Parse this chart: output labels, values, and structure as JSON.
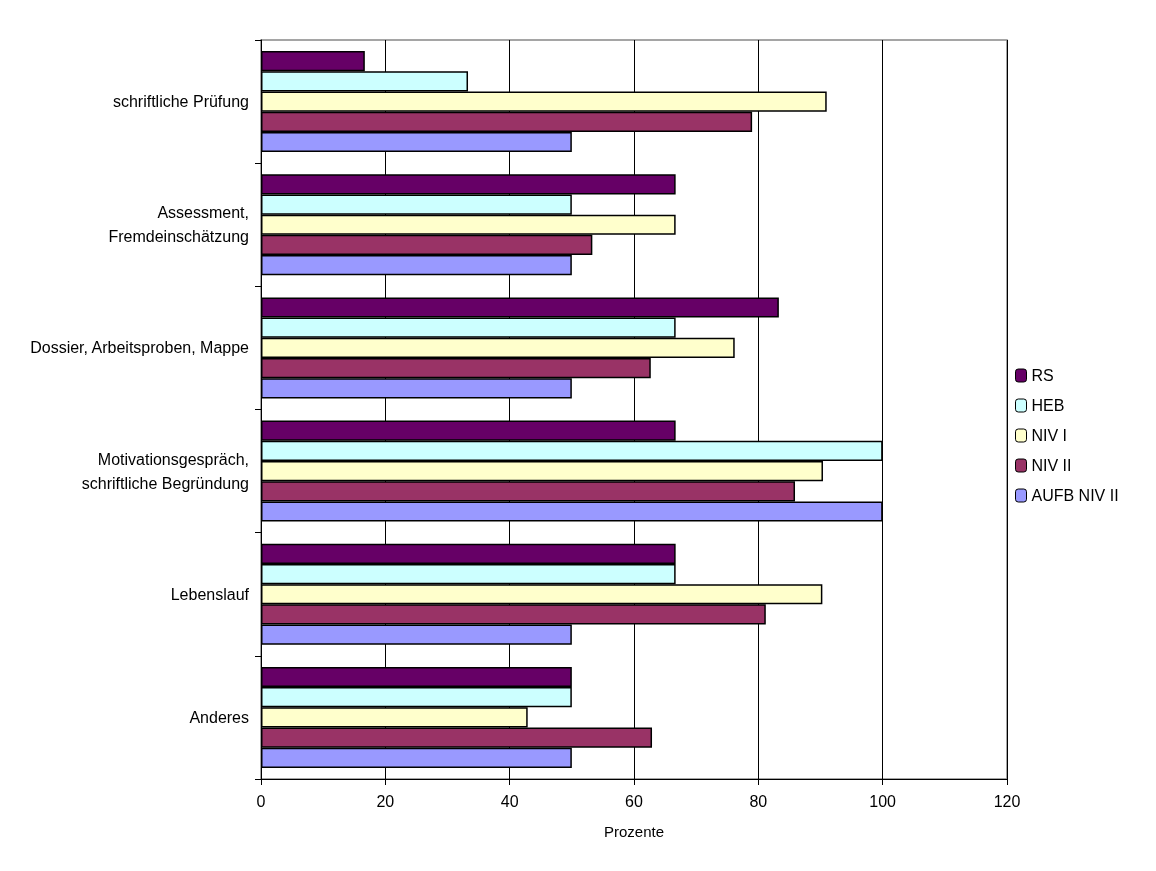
{
  "chart_data": {
    "type": "bar",
    "orientation": "horizontal",
    "xlabel": "Prozente",
    "categories": [
      "schriftliche Prüfung",
      "Assessment,\nFremdeinschätzung",
      "Dossier, Arbeitsproben, Mappe",
      "Motivationsgespräch,\nschriftliche Begründung",
      "Lebenslauf",
      "Anderes"
    ],
    "series": [
      {
        "name": "RS",
        "color": "#660066",
        "values": [
          16.7,
          66.7,
          83.3,
          66.7,
          66.7,
          50
        ]
      },
      {
        "name": "HEB",
        "color": "#ccffff",
        "values": [
          33.3,
          50,
          66.7,
          100,
          66.7,
          50
        ]
      },
      {
        "name": "NIV I",
        "color": "#ffffcc",
        "values": [
          91,
          66.7,
          76.2,
          90.4,
          90.3,
          42.9
        ]
      },
      {
        "name": "NIV II",
        "color": "#993366",
        "values": [
          79,
          53.3,
          62.7,
          85.9,
          81.2,
          62.9
        ]
      },
      {
        "name": "AUFB NIV II",
        "color": "#9999ff",
        "values": [
          50,
          50,
          50,
          100,
          50,
          50
        ]
      }
    ],
    "xlim": [
      0,
      120
    ],
    "xticks": [
      0,
      20,
      40,
      60,
      80,
      100,
      120
    ],
    "grid": "x",
    "legend": "right"
  }
}
